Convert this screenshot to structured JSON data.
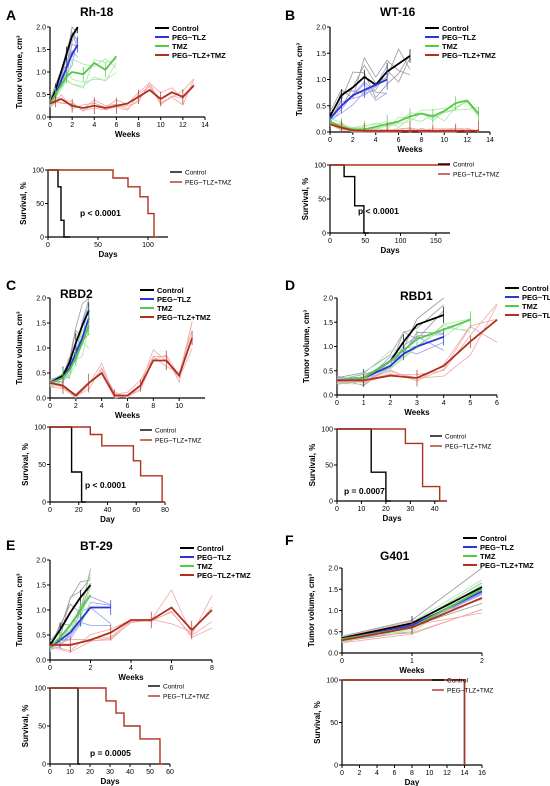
{
  "colors": {
    "control": "#000000",
    "peg_tlz": "#2b35d6",
    "tmz": "#54c94a",
    "combo": "#b0301e",
    "control_light": "#9a9a9a",
    "peg_tlz_light": "#9aa0ee",
    "tmz_light": "#a8e8a0",
    "combo_light": "#f0a8a8"
  },
  "chart_data": [
    {
      "id": "A",
      "panel_letter": "A",
      "type": "line",
      "title": "Rh-18",
      "xlabel": "Weeks",
      "ylabel": "Tumor volume, cm³",
      "xlim": [
        0,
        14
      ],
      "ylim": [
        0,
        2.0
      ],
      "xticks": [
        "0",
        "2",
        "4",
        "6",
        "8",
        "10",
        "12",
        "14"
      ],
      "yticks": [
        "0.0",
        "0.5",
        "1.0",
        "1.5",
        "2.0"
      ],
      "legend": [
        "Control",
        "PEG~TLZ",
        "TMZ",
        "PEG~TLZ+TMZ"
      ],
      "series": [
        {
          "name": "Control",
          "x": [
            0,
            0.5,
            1,
            1.5,
            2,
            2.5
          ],
          "y": [
            0.3,
            0.6,
            1.0,
            1.4,
            1.8,
            2.0
          ]
        },
        {
          "name": "PEG~TLZ",
          "x": [
            0,
            0.5,
            1,
            1.5,
            2,
            2.5
          ],
          "y": [
            0.3,
            0.5,
            0.8,
            1.1,
            1.4,
            1.6
          ]
        },
        {
          "name": "TMZ",
          "x": [
            0,
            0.5,
            1,
            1.5,
            2,
            3,
            4,
            5,
            6
          ],
          "y": [
            0.3,
            0.5,
            0.7,
            0.9,
            1.0,
            0.95,
            1.2,
            1.05,
            1.35
          ]
        },
        {
          "name": "PEG~TLZ+TMZ",
          "x": [
            0,
            0.5,
            1,
            2,
            3,
            4,
            5,
            6,
            7,
            8,
            9,
            10,
            11,
            12,
            13
          ],
          "y": [
            0.3,
            0.35,
            0.4,
            0.25,
            0.2,
            0.25,
            0.2,
            0.25,
            0.3,
            0.45,
            0.6,
            0.4,
            0.55,
            0.45,
            0.7
          ]
        }
      ],
      "survival": {
        "xlabel": "Days",
        "ylabel": "Survival, %",
        "xlim": [
          0,
          120
        ],
        "ylim": [
          0,
          100
        ],
        "xticks": [
          "0",
          "50",
          "100"
        ],
        "yticks": [
          "0",
          "50",
          "100"
        ],
        "legend": [
          "Control",
          "PEG~TLZ+TMZ"
        ],
        "pvalue": "p < 0.0001",
        "series": [
          {
            "name": "Control",
            "x": [
              0,
              10,
              10,
              13,
              13,
              16,
              16,
              22
            ],
            "y": [
              100,
              100,
              75,
              75,
              25,
              25,
              0,
              0
            ]
          },
          {
            "name": "PEG~TLZ+TMZ",
            "x": [
              0,
              65,
              65,
              80,
              80,
              92,
              92,
              100,
              100,
              106,
              106,
              110
            ],
            "y": [
              100,
              100,
              88,
              88,
              75,
              75,
              60,
              60,
              35,
              35,
              0,
              0
            ]
          }
        ]
      }
    },
    {
      "id": "B",
      "panel_letter": "B",
      "type": "line",
      "title": "WT-16",
      "xlabel": "Weeks",
      "ylabel": "Tumor volume, cm³",
      "xlim": [
        0,
        14
      ],
      "ylim": [
        0,
        2.0
      ],
      "xticks": [
        "0",
        "2",
        "4",
        "6",
        "8",
        "10",
        "12",
        "14"
      ],
      "yticks": [
        "0.0",
        "0.5",
        "1.0",
        "1.5",
        "2.0"
      ],
      "legend": [
        "Control",
        "PEG~TLZ",
        "TMZ",
        "PEG~TLZ+TMZ"
      ],
      "series": [
        {
          "name": "Control",
          "x": [
            0,
            1,
            2,
            3,
            4,
            5,
            6,
            7
          ],
          "y": [
            0.3,
            0.7,
            0.85,
            1.05,
            0.9,
            1.15,
            1.3,
            1.45
          ]
        },
        {
          "name": "PEG~TLZ",
          "x": [
            0,
            1,
            2,
            3,
            4,
            5
          ],
          "y": [
            0.25,
            0.5,
            0.7,
            0.8,
            0.9,
            1.0
          ]
        },
        {
          "name": "TMZ",
          "x": [
            0,
            1,
            2,
            3,
            4,
            5,
            6,
            7,
            8,
            9,
            10,
            11,
            12,
            13
          ],
          "y": [
            0.2,
            0.1,
            0.05,
            0.05,
            0.1,
            0.15,
            0.2,
            0.3,
            0.35,
            0.3,
            0.4,
            0.55,
            0.6,
            0.35
          ]
        },
        {
          "name": "PEG~TLZ+TMZ",
          "x": [
            0,
            1,
            2,
            3,
            4,
            5,
            6,
            7,
            8,
            9,
            10,
            11,
            12,
            13
          ],
          "y": [
            0.15,
            0.08,
            0.03,
            0.02,
            0.02,
            0.02,
            0.02,
            0.02,
            0.02,
            0.02,
            0.02,
            0.02,
            0.02,
            0.02
          ]
        }
      ],
      "survival": {
        "xlabel": "Days",
        "ylabel": "Survival, %",
        "xlim": [
          0,
          170
        ],
        "ylim": [
          0,
          100
        ],
        "xticks": [
          "0",
          "50",
          "100",
          "150"
        ],
        "yticks": [
          "0",
          "50",
          "100"
        ],
        "legend": [
          "Control",
          "PEG~TLZ+TMZ"
        ],
        "pvalue": "p < 0.0001",
        "series": [
          {
            "name": "Control",
            "x": [
              0,
              20,
              20,
              35,
              35,
              48,
              48,
              55
            ],
            "y": [
              100,
              100,
              83,
              83,
              40,
              40,
              0,
              0
            ]
          },
          {
            "name": "PEG~TLZ+TMZ",
            "x": [
              0,
              170
            ],
            "y": [
              100,
              100
            ]
          }
        ]
      }
    },
    {
      "id": "C",
      "panel_letter": "C",
      "type": "line",
      "title": "RBD2",
      "xlabel": "Weeks",
      "ylabel": "Tumor volume, cm³",
      "xlim": [
        0,
        12
      ],
      "ylim": [
        0,
        2.0
      ],
      "xticks": [
        "0",
        "2",
        "4",
        "6",
        "8",
        "10"
      ],
      "yticks": [
        "0.0",
        "0.5",
        "1.0",
        "1.5",
        "2.0"
      ],
      "legend": [
        "Control",
        "PEG~TLZ",
        "TMZ",
        "PEG~TLZ+TMZ"
      ],
      "series": [
        {
          "name": "Control",
          "x": [
            0,
            1,
            1.5,
            2,
            2.5,
            3
          ],
          "y": [
            0.3,
            0.45,
            0.7,
            1.1,
            1.45,
            1.75
          ]
        },
        {
          "name": "PEG~TLZ",
          "x": [
            0,
            1,
            1.5,
            2,
            2.5,
            3
          ],
          "y": [
            0.3,
            0.4,
            0.6,
            0.9,
            1.2,
            1.6
          ]
        },
        {
          "name": "TMZ",
          "x": [
            0,
            1,
            1.5,
            2,
            2.5,
            3
          ],
          "y": [
            0.3,
            0.4,
            0.55,
            0.8,
            1.1,
            1.45
          ]
        },
        {
          "name": "PEG~TLZ+TMZ",
          "x": [
            0,
            1,
            2,
            3,
            4,
            5,
            6,
            7,
            8,
            9,
            10,
            11
          ],
          "y": [
            0.3,
            0.25,
            0.05,
            0.3,
            0.5,
            0.05,
            0.05,
            0.25,
            0.75,
            0.75,
            0.45,
            1.2
          ]
        }
      ],
      "survival": {
        "xlabel": "Day",
        "ylabel": "Survival, %",
        "xlim": [
          0,
          80
        ],
        "ylim": [
          0,
          100
        ],
        "xticks": [
          "0",
          "20",
          "40",
          "60",
          "80"
        ],
        "yticks": [
          "0",
          "50",
          "100"
        ],
        "legend": [
          "Control",
          "PEG~TLZ+TMZ"
        ],
        "pvalue": "p < 0.0001",
        "series": [
          {
            "name": "Control",
            "x": [
              0,
              15,
              15,
              22,
              22,
              25
            ],
            "y": [
              100,
              100,
              40,
              40,
              0,
              0
            ]
          },
          {
            "name": "PEG~TLZ+TMZ",
            "x": [
              0,
              28,
              28,
              36,
              36,
              50,
              50,
              58,
              58,
              63,
              63,
              73,
              73,
              78,
              78,
              80
            ],
            "y": [
              100,
              100,
              90,
              90,
              75,
              75,
              75,
              75,
              55,
              55,
              35,
              35,
              35,
              35,
              0,
              0
            ]
          }
        ]
      }
    },
    {
      "id": "D",
      "panel_letter": "D",
      "type": "line",
      "title": "RBD1",
      "xlabel": "Weeks",
      "ylabel": "Tumor volume, cm³",
      "xlim": [
        0,
        6
      ],
      "ylim": [
        0,
        2.0
      ],
      "xticks": [
        "0",
        "1",
        "2",
        "3",
        "4",
        "5",
        "6"
      ],
      "yticks": [
        "0.0",
        "0.5",
        "1.0",
        "1.5",
        "2.0"
      ],
      "legend": [
        "Control",
        "PEG~TLZ",
        "TMZ",
        "PEG~TLZ+TMZ"
      ],
      "series": [
        {
          "name": "Control",
          "x": [
            0,
            1,
            2,
            2.5,
            3,
            4
          ],
          "y": [
            0.3,
            0.35,
            0.7,
            1.1,
            1.45,
            1.65
          ]
        },
        {
          "name": "PEG~TLZ",
          "x": [
            0,
            1,
            2,
            2.5,
            3,
            4
          ],
          "y": [
            0.3,
            0.35,
            0.6,
            0.85,
            1.0,
            1.2
          ]
        },
        {
          "name": "TMZ",
          "x": [
            0,
            1,
            2,
            3,
            4,
            5
          ],
          "y": [
            0.3,
            0.35,
            0.7,
            1.15,
            1.35,
            1.55
          ]
        },
        {
          "name": "PEG~TLZ+TMZ",
          "x": [
            0,
            1,
            2,
            3,
            4,
            5,
            6
          ],
          "y": [
            0.3,
            0.3,
            0.4,
            0.35,
            0.6,
            1.1,
            1.55
          ]
        }
      ],
      "survival": {
        "xlabel": "Days",
        "ylabel": "Survival, %",
        "xlim": [
          0,
          45
        ],
        "ylim": [
          0,
          100
        ],
        "xticks": [
          "0",
          "10",
          "20",
          "30",
          "40"
        ],
        "yticks": [
          "0",
          "50",
          "100"
        ],
        "legend": [
          "Control",
          "PEG~TLZ+TMZ"
        ],
        "pvalue": "p = 0.0007",
        "series": [
          {
            "name": "Control",
            "x": [
              0,
              14,
              14,
              20,
              20,
              22
            ],
            "y": [
              100,
              100,
              40,
              40,
              0,
              0
            ]
          },
          {
            "name": "PEG~TLZ+TMZ",
            "x": [
              0,
              28,
              28,
              35,
              35,
              42,
              42,
              45
            ],
            "y": [
              100,
              100,
              80,
              80,
              20,
              20,
              0,
              0
            ]
          }
        ]
      }
    },
    {
      "id": "E",
      "panel_letter": "E",
      "type": "line",
      "title": "BT-29",
      "xlabel": "Weeks",
      "ylabel": "Tumor volume, cm³",
      "xlim": [
        0,
        8
      ],
      "ylim": [
        0,
        2.0
      ],
      "xticks": [
        "0",
        "2",
        "4",
        "6",
        "8"
      ],
      "yticks": [
        "0.0",
        "0.5",
        "1.0",
        "1.5",
        "2.0"
      ],
      "legend": [
        "Control",
        "PEG~TLZ",
        "TMZ",
        "PEG~TLZ+TMZ"
      ],
      "series": [
        {
          "name": "Control",
          "x": [
            0,
            0.5,
            1,
            1.5,
            2
          ],
          "y": [
            0.3,
            0.6,
            0.95,
            1.25,
            1.5
          ]
        },
        {
          "name": "PEG~TLZ",
          "x": [
            0,
            0.5,
            1,
            1.5,
            2,
            3
          ],
          "y": [
            0.25,
            0.4,
            0.55,
            0.8,
            1.05,
            1.05
          ]
        },
        {
          "name": "TMZ",
          "x": [
            0,
            0.5,
            1,
            1.5,
            2
          ],
          "y": [
            0.25,
            0.45,
            0.7,
            1.0,
            1.3
          ]
        },
        {
          "name": "PEG~TLZ+TMZ",
          "x": [
            0,
            1,
            2,
            3,
            4,
            5,
            6,
            7,
            8
          ],
          "y": [
            0.3,
            0.3,
            0.4,
            0.55,
            0.8,
            0.8,
            1.05,
            0.6,
            1.0
          ]
        }
      ],
      "survival": {
        "xlabel": "Days",
        "ylabel": "Survival, %",
        "xlim": [
          0,
          60
        ],
        "ylim": [
          0,
          100
        ],
        "xticks": [
          "0",
          "10",
          "20",
          "30",
          "40",
          "50",
          "60"
        ],
        "yticks": [
          "0",
          "50",
          "100"
        ],
        "legend": [
          "Control",
          "PEG~TLZ+TMZ"
        ],
        "pvalue": "p = 0.0005",
        "series": [
          {
            "name": "Control",
            "x": [
              0,
              14,
              14,
              15
            ],
            "y": [
              100,
              100,
              0,
              0
            ]
          },
          {
            "name": "PEG~TLZ+TMZ",
            "x": [
              0,
              28,
              28,
              33,
              33,
              37,
              37,
              45,
              45,
              55,
              55,
              57
            ],
            "y": [
              100,
              100,
              83,
              83,
              67,
              67,
              50,
              50,
              33,
              33,
              0,
              0
            ]
          }
        ]
      }
    },
    {
      "id": "F",
      "panel_letter": "F",
      "type": "line",
      "title": "G401",
      "xlabel": "Weeks",
      "ylabel": "Tumor volume, cm³",
      "xlim": [
        0,
        2
      ],
      "ylim": [
        0,
        2.0
      ],
      "xticks": [
        "0",
        "1",
        "2"
      ],
      "yticks": [
        "0.0",
        "0.5",
        "1.0",
        "1.5",
        "2.0"
      ],
      "legend": [
        "Control",
        "PEG~TLZ",
        "TMZ",
        "PEG~TLZ+TMZ"
      ],
      "series": [
        {
          "name": "Control",
          "x": [
            0,
            1,
            2
          ],
          "y": [
            0.35,
            0.7,
            1.55
          ]
        },
        {
          "name": "PEG~TLZ",
          "x": [
            0,
            1,
            2
          ],
          "y": [
            0.32,
            0.65,
            1.45
          ]
        },
        {
          "name": "TMZ",
          "x": [
            0,
            1,
            2
          ],
          "y": [
            0.33,
            0.6,
            1.5
          ]
        },
        {
          "name": "PEG~TLZ+TMZ",
          "x": [
            0,
            1,
            2
          ],
          "y": [
            0.3,
            0.6,
            1.3
          ]
        }
      ],
      "survival": {
        "xlabel": "Day",
        "ylabel": "Survival, %",
        "xlim": [
          0,
          16
        ],
        "ylim": [
          0,
          100
        ],
        "xticks": [
          "0",
          "2",
          "4",
          "6",
          "8",
          "10",
          "12",
          "14",
          "16"
        ],
        "yticks": [
          "0",
          "50",
          "100"
        ],
        "legend": [
          "Control",
          "PEG~TLZ+TMZ"
        ],
        "pvalue": "",
        "series": [
          {
            "name": "Control",
            "x": [
              0,
              14,
              14
            ],
            "y": [
              100,
              100,
              0
            ]
          },
          {
            "name": "PEG~TLZ+TMZ",
            "x": [
              0,
              14,
              14
            ],
            "y": [
              100,
              100,
              0
            ]
          }
        ]
      }
    }
  ]
}
